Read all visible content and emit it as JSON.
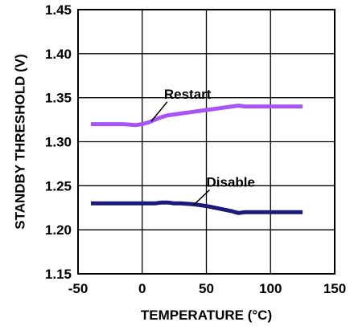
{
  "chart_data": {
    "type": "line",
    "title": "",
    "xlabel": "TEMPERATURE (°C)",
    "ylabel": "STANDBY THRESHOLD (V)",
    "xlim": [
      -50,
      150
    ],
    "ylim": [
      1.15,
      1.45
    ],
    "x_ticks": [
      -50,
      0,
      50,
      100,
      150
    ],
    "x_tick_labels": [
      "-50",
      "0",
      "50",
      "100",
      "150"
    ],
    "y_ticks": [
      1.15,
      1.2,
      1.25,
      1.3,
      1.35,
      1.4,
      1.45
    ],
    "y_tick_labels": [
      "1.15",
      "1.20",
      "1.25",
      "1.30",
      "1.35",
      "1.40",
      "1.45"
    ],
    "grid": true,
    "series": [
      {
        "name": "Restart",
        "color": "#a855f7",
        "x": [
          -40,
          -25,
          -15,
          -5,
          0,
          5,
          10,
          15,
          20,
          30,
          40,
          50,
          60,
          70,
          75,
          80,
          90,
          100,
          110,
          125
        ],
        "y": [
          1.32,
          1.32,
          1.32,
          1.319,
          1.32,
          1.322,
          1.325,
          1.328,
          1.33,
          1.332,
          1.334,
          1.336,
          1.338,
          1.34,
          1.341,
          1.34,
          1.34,
          1.34,
          1.34,
          1.34
        ]
      },
      {
        "name": "Disable",
        "color": "#1a1a7a",
        "x": [
          -40,
          -20,
          0,
          10,
          15,
          20,
          25,
          30,
          40,
          50,
          60,
          70,
          75,
          80,
          90,
          100,
          110,
          125
        ],
        "y": [
          1.23,
          1.23,
          1.23,
          1.23,
          1.231,
          1.231,
          1.23,
          1.23,
          1.229,
          1.227,
          1.224,
          1.221,
          1.219,
          1.22,
          1.22,
          1.22,
          1.22,
          1.22
        ]
      }
    ],
    "annotations": [
      {
        "text": "Restart",
        "x": 17,
        "y": 1.349,
        "pointer_to": [
          7,
          1.323
        ]
      },
      {
        "text": "Disable",
        "x": 50,
        "y": 1.249,
        "pointer_to": [
          40,
          1.228
        ]
      }
    ]
  }
}
